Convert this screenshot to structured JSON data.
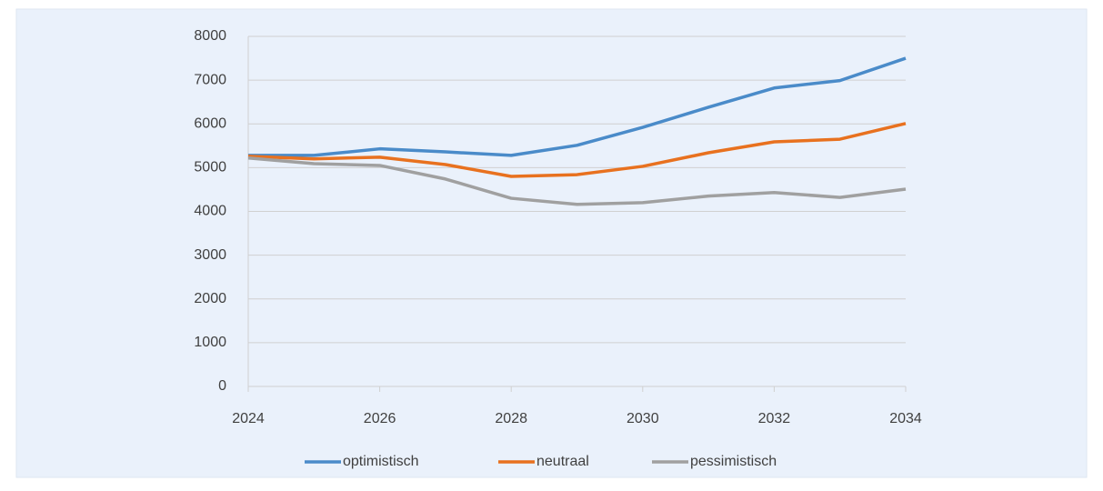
{
  "chart_data": {
    "type": "line",
    "x": [
      2024,
      2025,
      2026,
      2027,
      2028,
      2029,
      2030,
      2031,
      2032,
      2033,
      2034
    ],
    "series": [
      {
        "name": "optimistisch",
        "color": "#4a8bc9",
        "values": [
          5280,
          5280,
          5430,
          5360,
          5280,
          5510,
          5920,
          6380,
          6820,
          6990,
          7500
        ]
      },
      {
        "name": "neutraal",
        "color": "#e8711f",
        "values": [
          5260,
          5200,
          5240,
          5070,
          4800,
          4840,
          5030,
          5340,
          5590,
          5650,
          6010
        ]
      },
      {
        "name": "pessimistisch",
        "color": "#a0a0a0",
        "values": [
          5220,
          5090,
          5050,
          4740,
          4300,
          4160,
          4200,
          4350,
          4430,
          4320,
          4510
        ]
      }
    ],
    "xlim": [
      2024,
      2034
    ],
    "xticks": [
      2024,
      2026,
      2028,
      2030,
      2032,
      2034
    ],
    "ylim": [
      0,
      8000
    ],
    "yticks": [
      0,
      1000,
      2000,
      3000,
      4000,
      5000,
      6000,
      7000,
      8000
    ],
    "grid": true,
    "legend": "bottom"
  }
}
